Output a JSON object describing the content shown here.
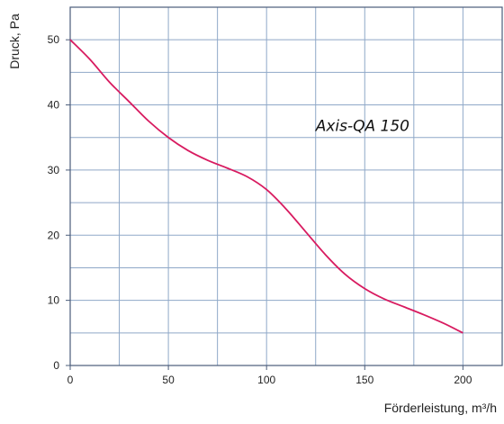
{
  "chart_data": {
    "type": "line",
    "xlabel": "Förderleistung, m³/h",
    "ylabel": "Druck, Pa",
    "xlim": [
      0,
      220
    ],
    "ylim": [
      0,
      55
    ],
    "x_ticks": [
      0,
      50,
      100,
      150,
      200
    ],
    "y_ticks": [
      0,
      10,
      20,
      30,
      40,
      50
    ],
    "x_grid_step": 25,
    "y_grid_step": 5,
    "grid": true,
    "annotation": {
      "text": "Axis-QA 150",
      "x": 125,
      "y": 36
    },
    "series": [
      {
        "color": "#d81b60",
        "x": [
          0,
          10,
          20,
          30,
          40,
          50,
          60,
          70,
          80,
          90,
          100,
          110,
          120,
          130,
          140,
          150,
          160,
          170,
          180,
          190,
          200
        ],
        "y": [
          50,
          47,
          43.5,
          40.5,
          37.5,
          35,
          33,
          31.5,
          30.3,
          29,
          27,
          24,
          20.5,
          17,
          14,
          11.8,
          10.2,
          9,
          7.8,
          6.5,
          5
        ]
      }
    ],
    "colors": {
      "grid": "#8fa8c8",
      "axis": "#4a5c7a",
      "plot_bg": "#ffffff"
    }
  }
}
